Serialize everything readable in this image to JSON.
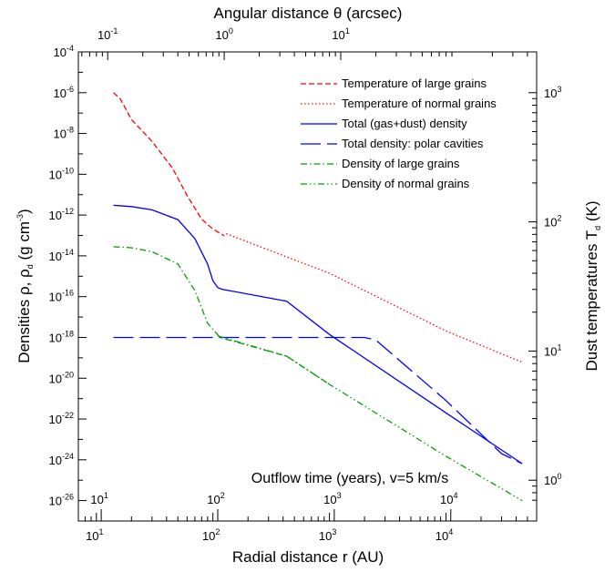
{
  "chart_data": {
    "type": "line",
    "axes": {
      "bottom": {
        "label": "Radial distance  r (AU)",
        "scale": "log",
        "range": [
          7,
          60000
        ],
        "ticks": [
          {
            "base": "10",
            "exp": "1",
            "v": 10
          },
          {
            "base": "10",
            "exp": "2",
            "v": 100
          },
          {
            "base": "10",
            "exp": "3",
            "v": 1000
          },
          {
            "base": "10",
            "exp": "4",
            "v": 10000
          }
        ]
      },
      "top": {
        "label": "Angular distance  θ (arcsec)",
        "scale": "log",
        "ticks": [
          {
            "base": "10",
            "exp": "-1",
            "v": 0.1
          },
          {
            "base": "10",
            "exp": "0",
            "v": 1
          },
          {
            "base": "10",
            "exp": "1",
            "v": 10
          }
        ]
      },
      "left": {
        "label_parts": [
          "Densities  ρ, ρ",
          "d",
          " (g cm",
          "-3",
          ")"
        ],
        "scale": "log",
        "range": [
          1e-27,
          0.0001
        ],
        "ticks": [
          {
            "base": "10",
            "exp": "-4",
            "v": 0.0001
          },
          {
            "base": "10",
            "exp": "-6",
            "v": 1e-06
          },
          {
            "base": "10",
            "exp": "-8",
            "v": 1e-08
          },
          {
            "base": "10",
            "exp": "-10",
            "v": 1e-10
          },
          {
            "base": "10",
            "exp": "-12",
            "v": 1e-12
          },
          {
            "base": "10",
            "exp": "-14",
            "v": 1e-14
          },
          {
            "base": "10",
            "exp": "-16",
            "v": 1e-16
          },
          {
            "base": "10",
            "exp": "-18",
            "v": 1e-18
          },
          {
            "base": "10",
            "exp": "-20",
            "v": 1e-20
          },
          {
            "base": "10",
            "exp": "-22",
            "v": 1e-22
          },
          {
            "base": "10",
            "exp": "-24",
            "v": 1e-24
          },
          {
            "base": "10",
            "exp": "-26",
            "v": 1e-26
          }
        ]
      },
      "right": {
        "label_parts": [
          "Dust temperatures  T",
          "d",
          " (K)"
        ],
        "scale": "log",
        "ticks": [
          {
            "base": "10",
            "exp": "0",
            "v": 1
          },
          {
            "base": "10",
            "exp": "1",
            "v": 10
          },
          {
            "base": "10",
            "exp": "2",
            "v": 100
          },
          {
            "base": "10",
            "exp": "3",
            "v": 1000
          }
        ]
      },
      "inner": {
        "label": "Outflow time (years), v=5 km/s",
        "scale": "log",
        "ticks": [
          {
            "base": "10",
            "exp": "1",
            "v": 10
          },
          {
            "base": "10",
            "exp": "2",
            "v": 100
          },
          {
            "base": "10",
            "exp": "3",
            "v": 1000
          },
          {
            "base": "10",
            "exp": "4",
            "v": 10000
          }
        ]
      }
    },
    "series": [
      {
        "name": "Temperature of large grains",
        "color": "#ff0000",
        "dash": "dashed",
        "axis": "temperature",
        "points": [
          [
            14,
            1000
          ],
          [
            16,
            900
          ],
          [
            20,
            620
          ],
          [
            30,
            420
          ],
          [
            45,
            260
          ],
          [
            60,
            160
          ],
          [
            80,
            105
          ],
          [
            100,
            88
          ],
          [
            125,
            78
          ]
        ]
      },
      {
        "name": "Temperature of normal grains",
        "color": "#ff0000",
        "dash": "dotted",
        "axis": "temperature",
        "points": [
          [
            130,
            81
          ],
          [
            1000,
            40
          ],
          [
            10000,
            14.3
          ],
          [
            45000,
            8.2
          ]
        ]
      },
      {
        "name": "Total (gas+dust) density",
        "color": "#0000ff",
        "dash": "solid",
        "axis": "density",
        "points": [
          [
            14,
            3e-12
          ],
          [
            20,
            2.6e-12
          ],
          [
            30,
            1.8e-12
          ],
          [
            50,
            6e-13
          ],
          [
            70,
            7e-14
          ],
          [
            90,
            4e-15
          ],
          [
            100,
            6e-16
          ],
          [
            110,
            2.8e-16
          ],
          [
            120,
            2.3e-16
          ],
          [
            430,
            6e-17
          ],
          [
            1000,
            1.4e-18
          ],
          [
            10000,
            2e-22
          ],
          [
            45000,
            6.5e-25
          ]
        ]
      },
      {
        "name": "Total density: polar cavities",
        "color": "#0000ff",
        "dash": "longdash",
        "axis": "density",
        "points": [
          [
            14,
            1e-18
          ],
          [
            2000,
            1e-18
          ],
          [
            2500,
            7.5e-19
          ],
          [
            10000,
            8e-22
          ],
          [
            30000,
            2e-24
          ],
          [
            45000,
            6.5e-25
          ]
        ]
      },
      {
        "name": "Density of large grains",
        "color": "#00a000",
        "dash": "dashdot",
        "axis": "density",
        "points": [
          [
            14,
            2.8e-14
          ],
          [
            20,
            2.5e-14
          ],
          [
            30,
            1.6e-14
          ],
          [
            50,
            4e-15
          ],
          [
            70,
            2e-16
          ],
          [
            90,
            5e-18
          ],
          [
            115,
            1e-18
          ],
          [
            430,
            1.2e-19
          ],
          [
            1000,
            5e-21
          ]
        ]
      },
      {
        "name": "Density of normal grains",
        "color": "#00a000",
        "dash": "dashdotdot",
        "axis": "density",
        "points": [
          [
            110,
            1.2e-18
          ],
          [
            430,
            1.2e-19
          ],
          [
            1000,
            5e-21
          ],
          [
            10000,
            1.5e-24
          ],
          [
            45000,
            1e-26
          ]
        ]
      }
    ],
    "temperature_map": {
      "T_low": 1,
      "T_high": 1000,
      "rho_at_T_low": 1e-25,
      "rho_at_T_high": 1e-06
    },
    "legend": {
      "placement": "top-right"
    },
    "grid": false
  }
}
